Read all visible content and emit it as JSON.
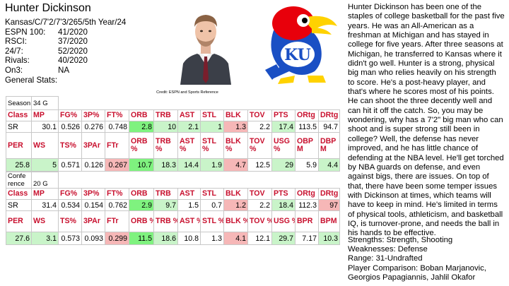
{
  "player": {
    "name": "Hunter Dickinson",
    "profile_line": "Kansas/C/7'2/7'3/265/5th Year/24",
    "rankings": [
      {
        "label": "ESPN 100:",
        "value": "41/2020"
      },
      {
        "label": "RSCI:",
        "value": "37/2020"
      },
      {
        "label": "24/7:",
        "value": "52/2020"
      },
      {
        "label": "Rivals:",
        "value": "40/2020"
      },
      {
        "label": "On3:",
        "value": "NA"
      }
    ],
    "general_stats_label": "General Stats:"
  },
  "credit": "Credit: ESPN and Sports Reference",
  "season": {
    "label": "Season",
    "games": "34 G",
    "headers1": [
      "Class",
      "MP",
      "FG%",
      "3P%",
      "FT%",
      "ORB",
      "TRB",
      "AST",
      "STL",
      "BLK",
      "TOV",
      "PTS",
      "ORtg",
      "DRtg"
    ],
    "row1": [
      "SR",
      "30.1",
      "0.526",
      "0.276",
      "0.748",
      "2.8",
      "10",
      "2.1",
      "1",
      "1.3",
      "2.2",
      "17.4",
      "113.5",
      "94.7"
    ],
    "headers2": [
      "PER",
      "WS",
      "TS%",
      "3PAr",
      "FTr",
      "ORB %",
      "TRB %",
      "AST %",
      "STL %",
      "BLK %",
      "TOV %",
      "USG %",
      "OBP M",
      "DBP M"
    ],
    "row2": [
      "25.8",
      "5",
      "0.571",
      "0.126",
      "0.267",
      "10.7",
      "18.3",
      "14.4",
      "1.9",
      "4.7",
      "12.5",
      "29",
      "5.9",
      "4.4"
    ]
  },
  "conference": {
    "label": "Confe rence",
    "games": "20 G",
    "headers1": [
      "Class",
      "MP",
      "FG%",
      "3P%",
      "FT%",
      "ORB",
      "TRB",
      "AST",
      "STL",
      "BLK",
      "TOV",
      "PTS",
      "ORtg",
      "DRtg"
    ],
    "row1": [
      "SR",
      "31.4",
      "0.534",
      "0.154",
      "0.762",
      "2.9",
      "9.7",
      "1.5",
      "0.7",
      "1.2",
      "2.2",
      "18.4",
      "112.3",
      "97"
    ],
    "headers2": [
      "PER",
      "WS",
      "TS%",
      "3PAr",
      "FTr",
      "ORB %",
      "TRB %",
      "AST %",
      "STL %",
      "BLK %",
      "TOV %",
      "USG %",
      "BPR",
      "BPM"
    ],
    "row2": [
      "27.6",
      "3.1",
      "0.573",
      "0.093",
      "0.299",
      "11.5",
      "18.6",
      "10.8",
      "1.3",
      "4.1",
      "12.1",
      "29.7",
      "7.17",
      "10.3"
    ]
  },
  "colors": {
    "green": "#7ff27f",
    "light_green": "#c9f4c9",
    "pink": "#f6b7b7",
    "header_red": "#c8102e"
  },
  "analysis": "Hunter Dickinson has been one of the staples of college basketball for the past five years. He was an All-American as a freshman at Michigan and has stayed in college for five years. After three seasons at Michigan, he transferred to Kansas where it didn't go well. Hunter is a strong, physical big man who relies heavily on his strength to score. He's a post-heavy player, and that's where he scores most of his points. He can shoot the three decently well and can hit it off the catch. So, you may be wondering, why has a 7'2\" big man who can shoot and is super strong still been in college? Well, the defense has never improved, and he has little chance of defending at the NBA level. He'll get torched by NBA guards on defense, and even against bigs, there are issues. On top of that, there have been some temper issues with Dickinson at times, which teams will have to keep in mind. He's limited in terms of physical tools, athleticism, and basketball IQ, is turnover-prone, and needs the ball in his hands to be effective.",
  "summary": {
    "strengths": "Strengths: Strength, Shooting",
    "weaknesses": "Weaknesses: Defense",
    "range": "Range: 31-Undrafted",
    "comparison": "Player Comparison: Boban Marjanovic, Georgios Papagiannis, Jahlil Okafor"
  },
  "images": {
    "headshot": "player-headshot",
    "logo": "kansas-jayhawks-logo"
  }
}
